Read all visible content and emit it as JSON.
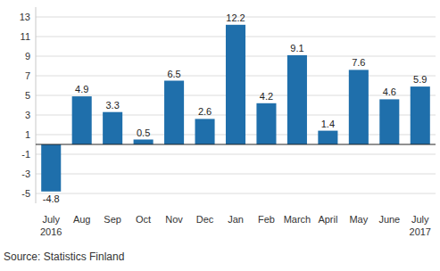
{
  "chart_data": {
    "type": "bar",
    "categories": [
      "July\n2016",
      "Aug",
      "Sep",
      "Oct",
      "Nov",
      "Dec",
      "Jan",
      "Feb",
      "March",
      "April",
      "May",
      "June",
      "July\n2017"
    ],
    "values": [
      -4.8,
      4.9,
      3.3,
      0.5,
      6.5,
      2.6,
      12.2,
      4.2,
      9.1,
      1.4,
      7.6,
      4.6,
      5.9
    ],
    "color": "#1f6fab",
    "ylim": [
      -6,
      14
    ],
    "yticks": [
      -5,
      -3,
      -1,
      1,
      3,
      5,
      7,
      9,
      11,
      13
    ],
    "grid": true,
    "data_labels": true,
    "source": "Source: Statistics Finland"
  }
}
